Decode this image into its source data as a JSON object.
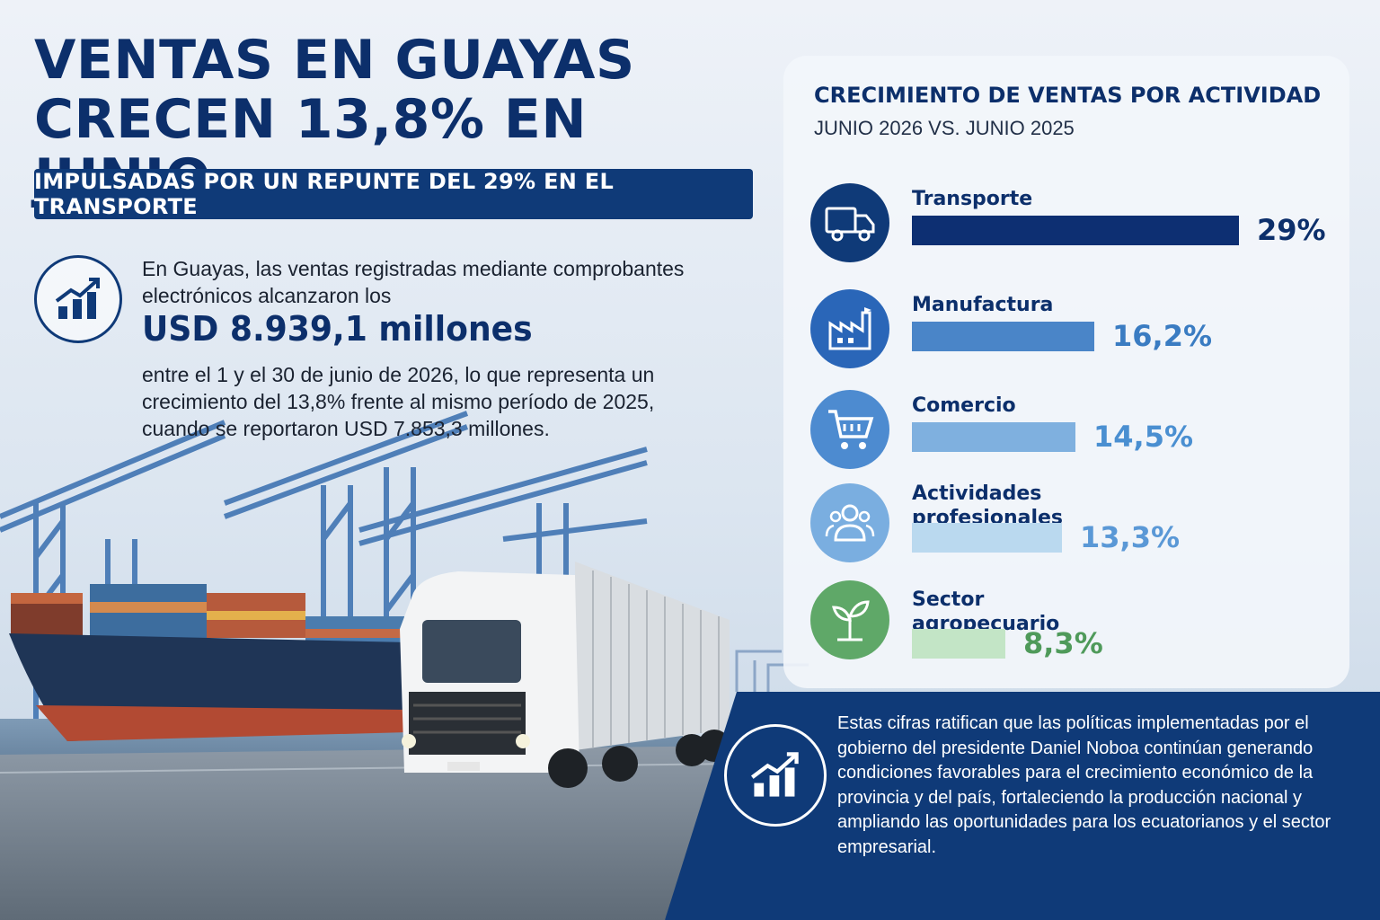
{
  "header": {
    "title_line1": "VENTAS EN GUAYAS",
    "title_line2": "CRECEN 13,8% EN JUNIO",
    "subtitle": "IMPULSADAS POR UN REPUNTE DEL 29% EN EL TRANSPORTE"
  },
  "intro": {
    "icon": "growth-chart-icon",
    "text_before": "En Guayas, las ventas registradas mediante comprobantes electrónicos alcanzaron los",
    "amount": "USD 8.939,1 millones",
    "text_after": "entre el 1 y el 30 de junio de 2026, lo que representa un crecimiento del 13,8% frente al mismo período de 2025, cuando se reportaron USD 7.853,3 millones."
  },
  "chart_data": {
    "type": "bar",
    "orientation": "horizontal",
    "title": "CRECIMIENTO DE VENTAS POR ACTIVIDAD",
    "subtitle": "JUNIO 2026 VS. JUNIO 2025",
    "categories": [
      "Transporte",
      "Manufactura",
      "Comercio",
      "Actividades profesionales",
      "Sector agropecuario"
    ],
    "values": [
      29,
      16.2,
      14.5,
      13.3,
      8.3
    ],
    "value_labels": [
      "29%",
      "16,2%",
      "14,5%",
      "13,3%",
      "8,3%"
    ],
    "unit": "%",
    "xlim": [
      0,
      29
    ],
    "grid": false,
    "legend": "none",
    "bar_colors": [
      "#0d2f72",
      "#4a85c8",
      "#7fb0df",
      "#bad9ef",
      "#c3e5c6"
    ],
    "value_colors": [
      "#0c2f6b",
      "#3a7cc2",
      "#4a8fd1",
      "#5a98d6",
      "#4f9a5a"
    ],
    "icon_colors": [
      "#0f3a78",
      "#2a66b8",
      "#4d8bd0",
      "#7aaee0",
      "#5fa868"
    ],
    "icons": [
      "truck-icon",
      "factory-icon",
      "shopping-cart-icon",
      "people-icon",
      "plant-sprout-icon"
    ]
  },
  "footer": {
    "icon": "growth-chart-icon",
    "text": "Estas cifras ratifican que las políticas implementadas por el gobierno del presidente Daniel Noboa continúan generando condiciones favorables para el crecimiento económico de la provincia y del país, fortaleciendo la producción nacional y ampliando las oportunidades para los ecuatorianos y el sector empresarial."
  }
}
